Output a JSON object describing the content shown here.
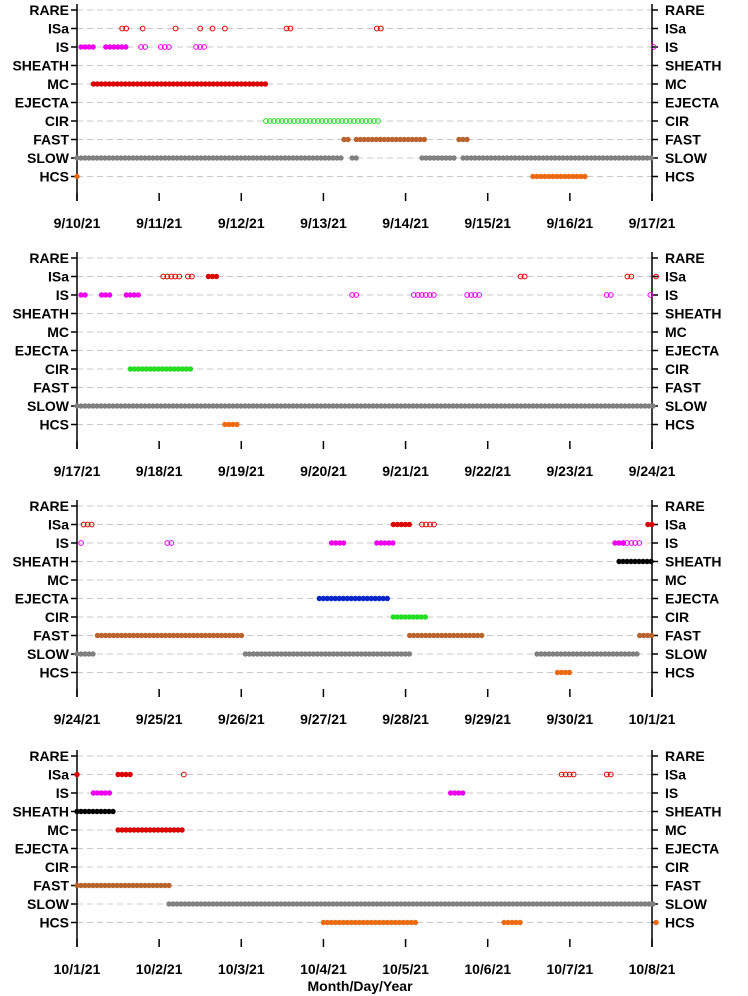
{
  "figure": {
    "xlabel": "Month/Day/Year"
  },
  "colors": {
    "RARE": "#000000",
    "ISa": "#dd0000",
    "IS": "#ee00ee",
    "SHEATH": "#000000",
    "MC": "#dd0000",
    "EJECTA": "#0022cc",
    "CIR": "#22dd22",
    "FAST": "#b8622d",
    "SLOW": "#808080",
    "HCS": "#ee6a10",
    "grid": "#c8c8c8"
  },
  "chart_data": [
    {
      "type": "scatter",
      "categories": [
        "RARE",
        "ISa",
        "IS",
        "SHEATH",
        "MC",
        "EJECTA",
        "CIR",
        "FAST",
        "SLOW",
        "HCS"
      ],
      "x_ticks": [
        "9/10/21",
        "9/11/21",
        "9/12/21",
        "9/13/21",
        "9/14/21",
        "9/15/21",
        "9/16/21",
        "9/17/21"
      ],
      "x_range": [
        0,
        7.1
      ],
      "grid": true,
      "series": [
        {
          "category": "ISa",
          "style": "open",
          "intervals": [
            [
              0.55,
              0.6
            ],
            [
              0.8,
              0.82
            ],
            [
              1.2,
              1.22
            ],
            [
              1.5,
              1.52
            ],
            [
              1.65,
              1.67
            ],
            [
              1.8,
              1.82
            ],
            [
              2.55,
              2.62
            ],
            [
              3.65,
              3.72
            ]
          ]
        },
        {
          "category": "IS",
          "style": "filled",
          "intervals": [
            [
              0.05,
              0.22
            ],
            [
              0.35,
              0.6
            ]
          ]
        },
        {
          "category": "IS",
          "style": "open",
          "intervals": [
            [
              0.78,
              0.85
            ],
            [
              1.02,
              1.12
            ],
            [
              1.45,
              1.55
            ],
            [
              7.02,
              7.08
            ]
          ]
        },
        {
          "category": "MC",
          "style": "filled",
          "intervals": [
            [
              0.2,
              2.3
            ]
          ]
        },
        {
          "category": "CIR",
          "style": "open",
          "intervals": [
            [
              2.3,
              3.7
            ]
          ]
        },
        {
          "category": "FAST",
          "style": "filled",
          "intervals": [
            [
              3.25,
              3.3
            ],
            [
              3.4,
              4.25
            ],
            [
              4.65,
              4.75
            ]
          ]
        },
        {
          "category": "SLOW",
          "style": "filled",
          "intervals": [
            [
              0.0,
              3.25
            ],
            [
              3.35,
              3.4
            ],
            [
              4.2,
              4.6
            ],
            [
              4.7,
              7.1
            ]
          ]
        },
        {
          "category": "HCS",
          "style": "filled",
          "intervals": [
            [
              0.0,
              0.02
            ],
            [
              5.55,
              6.2
            ]
          ]
        }
      ]
    },
    {
      "type": "scatter",
      "categories": [
        "RARE",
        "ISa",
        "IS",
        "SHEATH",
        "MC",
        "EJECTA",
        "CIR",
        "FAST",
        "SLOW",
        "HCS"
      ],
      "x_ticks": [
        "9/17/21",
        "9/18/21",
        "9/19/21",
        "9/20/21",
        "9/21/21",
        "9/22/21",
        "9/23/21",
        "9/24/21"
      ],
      "x_range": [
        0,
        7.1
      ],
      "grid": true,
      "series": [
        {
          "category": "ISa",
          "style": "open",
          "intervals": [
            [
              1.05,
              1.25
            ],
            [
              1.35,
              1.42
            ],
            [
              5.4,
              5.45
            ],
            [
              6.7,
              6.75
            ],
            [
              7.05,
              7.08
            ]
          ]
        },
        {
          "category": "ISa",
          "style": "filled",
          "intervals": [
            [
              1.6,
              1.7
            ]
          ]
        },
        {
          "category": "IS",
          "style": "filled",
          "intervals": [
            [
              0.05,
              0.12
            ],
            [
              0.3,
              0.4
            ],
            [
              0.6,
              0.75
            ]
          ]
        },
        {
          "category": "IS",
          "style": "open",
          "intervals": [
            [
              3.35,
              3.4
            ],
            [
              4.1,
              4.35
            ],
            [
              4.75,
              4.9
            ],
            [
              6.45,
              6.52
            ],
            [
              6.98,
              7.02
            ]
          ]
        },
        {
          "category": "CIR",
          "style": "filled",
          "intervals": [
            [
              0.65,
              1.4
            ]
          ]
        },
        {
          "category": "SLOW",
          "style": "filled",
          "intervals": [
            [
              0.0,
              7.1
            ]
          ]
        },
        {
          "category": "HCS",
          "style": "filled",
          "intervals": [
            [
              1.8,
              1.98
            ]
          ]
        }
      ]
    },
    {
      "type": "scatter",
      "categories": [
        "RARE",
        "ISa",
        "IS",
        "SHEATH",
        "MC",
        "EJECTA",
        "CIR",
        "FAST",
        "SLOW",
        "HCS"
      ],
      "x_ticks": [
        "9/24/21",
        "9/25/21",
        "9/26/21",
        "9/27/21",
        "9/28/21",
        "9/29/21",
        "9/30/21",
        "10/1/21"
      ],
      "x_range": [
        0,
        7.1
      ],
      "grid": true,
      "series": [
        {
          "category": "ISa",
          "style": "open",
          "intervals": [
            [
              0.08,
              0.18
            ],
            [
              4.2,
              4.35
            ]
          ]
        },
        {
          "category": "ISa",
          "style": "filled",
          "intervals": [
            [
              3.85,
              4.05
            ],
            [
              6.95,
              7.02
            ]
          ]
        },
        {
          "category": "IS",
          "style": "open",
          "intervals": [
            [
              0.05,
              0.07
            ],
            [
              1.1,
              1.18
            ],
            [
              6.65,
              6.85
            ]
          ]
        },
        {
          "category": "IS",
          "style": "filled",
          "intervals": [
            [
              3.1,
              3.25
            ],
            [
              3.65,
              3.85
            ],
            [
              6.55,
              6.65
            ]
          ]
        },
        {
          "category": "SHEATH",
          "style": "filled",
          "intervals": [
            [
              6.6,
              7.1
            ]
          ]
        },
        {
          "category": "EJECTA",
          "style": "filled",
          "intervals": [
            [
              2.95,
              3.8
            ]
          ]
        },
        {
          "category": "CIR",
          "style": "filled",
          "intervals": [
            [
              3.85,
              4.25
            ]
          ]
        },
        {
          "category": "FAST",
          "style": "filled",
          "intervals": [
            [
              0.25,
              2.05
            ],
            [
              4.05,
              4.95
            ],
            [
              6.85,
              7.1
            ]
          ]
        },
        {
          "category": "SLOW",
          "style": "filled",
          "intervals": [
            [
              0.0,
              0.22
            ],
            [
              2.05,
              4.05
            ],
            [
              5.6,
              6.85
            ]
          ]
        },
        {
          "category": "HCS",
          "style": "filled",
          "intervals": [
            [
              5.85,
              6.0
            ]
          ]
        }
      ]
    },
    {
      "type": "scatter",
      "categories": [
        "RARE",
        "ISa",
        "IS",
        "SHEATH",
        "MC",
        "EJECTA",
        "CIR",
        "FAST",
        "SLOW",
        "HCS"
      ],
      "x_ticks": [
        "10/1/21",
        "10/2/21",
        "10/3/21",
        "10/4/21",
        "10/5/21",
        "10/6/21",
        "10/7/21",
        "10/8/21"
      ],
      "x_range": [
        0,
        7.1
      ],
      "grid": true,
      "series": [
        {
          "category": "ISa",
          "style": "filled",
          "intervals": [
            [
              0.0,
              0.02
            ],
            [
              0.5,
              0.65
            ]
          ]
        },
        {
          "category": "ISa",
          "style": "open",
          "intervals": [
            [
              1.3,
              1.32
            ],
            [
              5.9,
              6.05
            ],
            [
              6.45,
              6.52
            ]
          ]
        },
        {
          "category": "IS",
          "style": "filled",
          "intervals": [
            [
              0.2,
              0.4
            ],
            [
              4.55,
              4.7
            ]
          ]
        },
        {
          "category": "SHEATH",
          "style": "filled",
          "intervals": [
            [
              0.0,
              0.48
            ]
          ]
        },
        {
          "category": "MC",
          "style": "filled",
          "intervals": [
            [
              0.5,
              1.28
            ]
          ]
        },
        {
          "category": "FAST",
          "style": "filled",
          "intervals": [
            [
              0.0,
              1.12
            ]
          ]
        },
        {
          "category": "SLOW",
          "style": "filled",
          "intervals": [
            [
              1.12,
              7.1
            ]
          ]
        },
        {
          "category": "HCS",
          "style": "filled",
          "intervals": [
            [
              3.0,
              4.15
            ],
            [
              5.2,
              5.4
            ],
            [
              7.05,
              7.1
            ]
          ]
        }
      ]
    }
  ]
}
